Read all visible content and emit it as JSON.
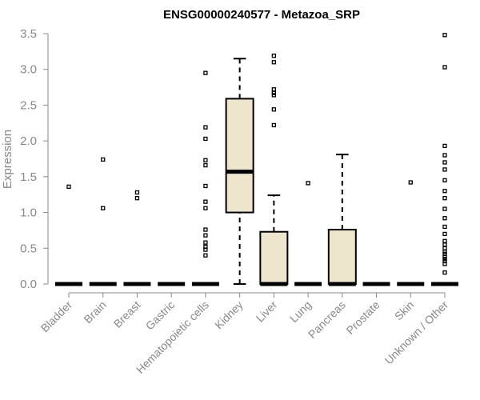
{
  "chart_data": {
    "type": "boxplot",
    "title": "ENSG00000240577 - Metazoa_SRP",
    "xlabel": "",
    "ylabel": "Expression",
    "ylim": [
      0,
      3.5
    ],
    "yticks": [
      "0.0",
      "0.5",
      "1.0",
      "1.5",
      "2.0",
      "2.5",
      "3.0",
      "3.5"
    ],
    "box_fill": "#ede6cc",
    "categories": [
      "Bladder",
      "Brain",
      "Breast",
      "Gastric",
      "Hematopoietic cells",
      "Kidney",
      "Liver",
      "Lung",
      "Pancreas",
      "Prostate",
      "Skin",
      "Unknown / Other"
    ],
    "boxes": [
      {
        "min": 0,
        "q1": 0,
        "median": 0,
        "q3": 0,
        "max": 0,
        "outliers": [
          1.36
        ]
      },
      {
        "min": 0,
        "q1": 0,
        "median": 0,
        "q3": 0,
        "max": 0,
        "outliers": [
          1.74,
          1.06
        ]
      },
      {
        "min": 0,
        "q1": 0,
        "median": 0,
        "q3": 0,
        "max": 0,
        "outliers": [
          1.28,
          1.2
        ]
      },
      {
        "min": 0,
        "q1": 0,
        "median": 0,
        "q3": 0,
        "max": 0,
        "outliers": []
      },
      {
        "min": 0,
        "q1": 0,
        "median": 0,
        "q3": 0,
        "max": 0,
        "outliers": [
          2.95,
          2.19,
          2.03,
          1.73,
          1.66,
          1.37,
          1.15,
          1.06,
          0.76,
          0.68,
          0.58,
          0.52,
          0.48,
          0.4
        ]
      },
      {
        "min": 0,
        "q1": 1.0,
        "median": 1.57,
        "q3": 2.59,
        "max": 3.15,
        "outliers": []
      },
      {
        "min": 0,
        "q1": 0,
        "median": 0,
        "q3": 0.73,
        "max": 1.24,
        "outliers": [
          3.19,
          3.1,
          2.72,
          2.67,
          2.64,
          2.44,
          2.22
        ]
      },
      {
        "min": 0,
        "q1": 0,
        "median": 0,
        "q3": 0,
        "max": 0,
        "outliers": [
          1.41
        ]
      },
      {
        "min": 0,
        "q1": 0,
        "median": 0,
        "q3": 0.76,
        "max": 1.81,
        "outliers": []
      },
      {
        "min": 0,
        "q1": 0,
        "median": 0,
        "q3": 0,
        "max": 0,
        "outliers": []
      },
      {
        "min": 0,
        "q1": 0,
        "median": 0,
        "q3": 0,
        "max": 0,
        "outliers": [
          1.42
        ]
      },
      {
        "min": 0,
        "q1": 0,
        "median": 0,
        "q3": 0,
        "max": 0,
        "outliers": [
          3.48,
          3.03,
          1.93,
          1.8,
          1.7,
          1.6,
          1.45,
          1.3,
          1.2,
          1.05,
          0.92,
          0.8,
          0.7,
          0.6,
          0.55,
          0.5,
          0.45,
          0.42,
          0.38,
          0.35,
          0.32,
          0.28,
          0.16
        ]
      }
    ]
  }
}
